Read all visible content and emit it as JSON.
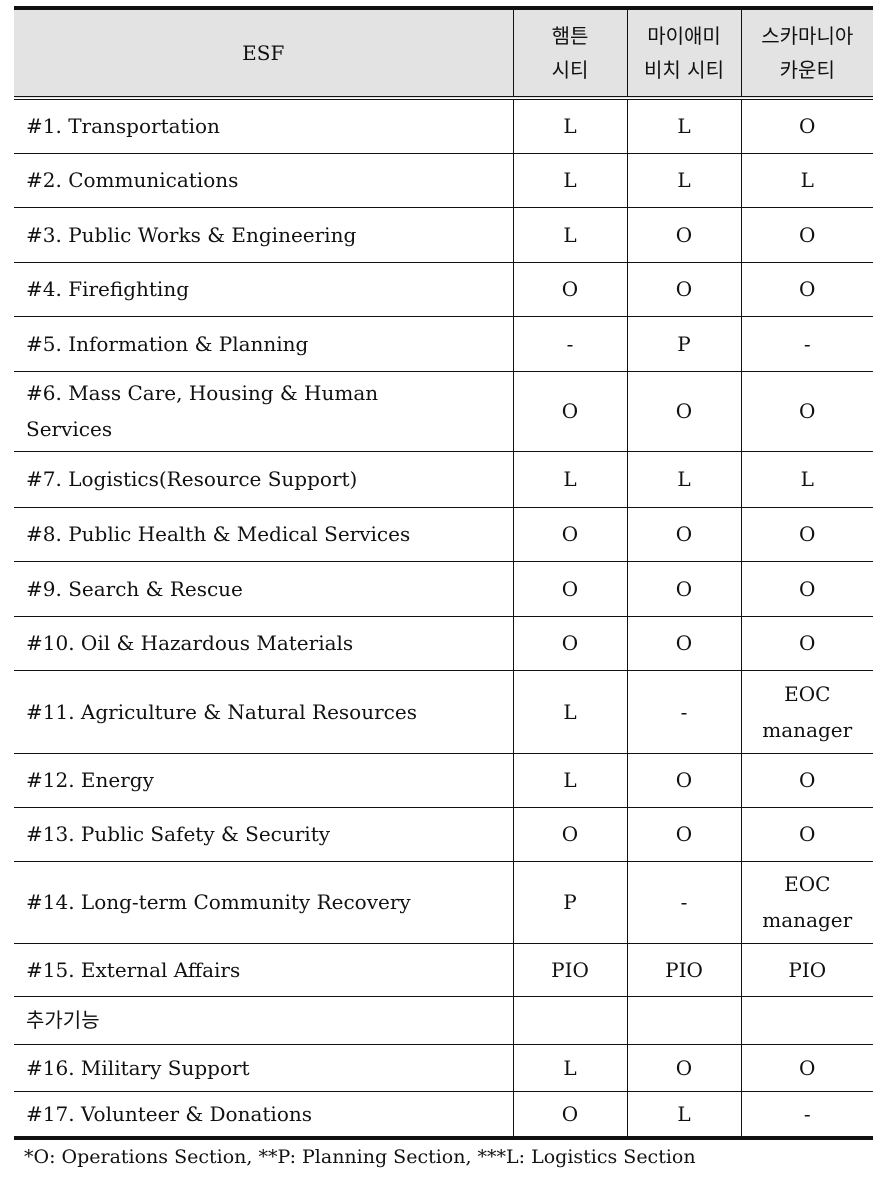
{
  "table": {
    "headers": [
      "ESF",
      "햄튼\n시티",
      "마이애미\n비치 시티",
      "스카마니아\n카운티"
    ],
    "header_lines": [
      [
        "ESF"
      ],
      [
        "햄튼",
        "시티"
      ],
      [
        "마이애미",
        "비치 시티"
      ],
      [
        "스카마니아",
        "카운티"
      ]
    ],
    "rows": [
      {
        "esf": "#1. Transportation",
        "c1": "L",
        "c2": "L",
        "c3": "O"
      },
      {
        "esf": "#2. Communications",
        "c1": "L",
        "c2": "L",
        "c3": "L"
      },
      {
        "esf": "#3. Public Works & Engineering",
        "c1": "L",
        "c2": "O",
        "c3": "O"
      },
      {
        "esf": "#4. Firefighting",
        "c1": "O",
        "c2": "O",
        "c3": "O"
      },
      {
        "esf": "#5. Information & Planning",
        "c1": "-",
        "c2": "P",
        "c3": "-"
      },
      {
        "esf": "#6. Mass Care, Housing & Human Services",
        "c1": "O",
        "c2": "O",
        "c3": "O"
      },
      {
        "esf": "#7. Logistics(Resource Support)",
        "c1": "L",
        "c2": "L",
        "c3": "L"
      },
      {
        "esf": "#8. Public Health & Medical Services",
        "c1": "O",
        "c2": "O",
        "c3": "O"
      },
      {
        "esf": "#9. Search & Rescue",
        "c1": "O",
        "c2": "O",
        "c3": "O"
      },
      {
        "esf": "#10. Oil & Hazardous Materials",
        "c1": "O",
        "c2": "O",
        "c3": "O"
      },
      {
        "esf": "#11. Agriculture & Natural Resources",
        "c1": "L",
        "c2": "-",
        "c3": "EOC manager"
      },
      {
        "esf": "#12. Energy",
        "c1": "L",
        "c2": "O",
        "c3": "O"
      },
      {
        "esf": "#13. Public Safety & Security",
        "c1": "O",
        "c2": "O",
        "c3": "O"
      },
      {
        "esf": "#14. Long-term Community Recovery",
        "c1": "P",
        "c2": "-",
        "c3": "EOC manager"
      },
      {
        "esf": "#15. External Affairs",
        "c1": "PIO",
        "c2": "PIO",
        "c3": "PIO"
      },
      {
        "esf": "추가기능",
        "c1": "",
        "c2": "",
        "c3": ""
      },
      {
        "esf": "#16. Military Support",
        "c1": "L",
        "c2": "O",
        "c3": "O"
      },
      {
        "esf": "#17. Volunteer & Donations",
        "c1": "O",
        "c2": "L",
        "c3": "-"
      }
    ]
  },
  "footnote": "*O: Operations Section, **P: Planning Section, ***L: Logistics Section"
}
